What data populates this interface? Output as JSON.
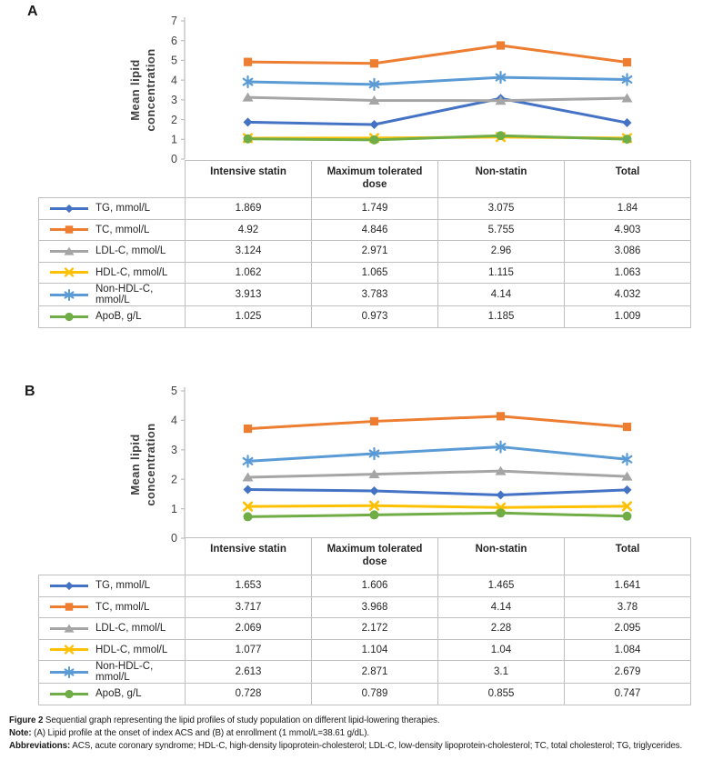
{
  "figure": {
    "panel_a_label": "A",
    "panel_b_label": "B"
  },
  "colors": {
    "tg": "#4472C4",
    "tc": "#ED7D31",
    "ldl": "#A5A5A5",
    "hdl": "#FFC000",
    "non_hdl": "#5B9BD5",
    "apob": "#70AD47",
    "axis_line": "#BFBFBF",
    "table_border": "#BFBFBF",
    "tick_text": "#3F3F3F"
  },
  "chart_data": [
    {
      "type": "line",
      "panel": "A",
      "ylabel": "Mean lipid concentration",
      "ylabel_lines": [
        "Mean lipid",
        "concentration"
      ],
      "categories": [
        "Intensive statin",
        "Maximum tolerated dose",
        "Non-statin",
        "Total"
      ],
      "ylim": [
        0,
        7
      ],
      "yticks": [
        0,
        1,
        2,
        3,
        4,
        5,
        6,
        7
      ],
      "grid": false,
      "legend_position": "table-left",
      "series": [
        {
          "name": "TG, mmol/L",
          "marker": "diamond",
          "color": "#4472C4",
          "values": [
            1.869,
            1.749,
            3.075,
            1.84
          ]
        },
        {
          "name": "TC, mmol/L",
          "marker": "square",
          "color": "#ED7D31",
          "values": [
            4.92,
            4.846,
            5.755,
            4.903
          ]
        },
        {
          "name": "LDL-C, mmol/L",
          "marker": "triangle",
          "color": "#A5A5A5",
          "values": [
            3.124,
            2.971,
            2.96,
            3.086
          ]
        },
        {
          "name": "HDL-C, mmol/L",
          "marker": "x",
          "color": "#FFC000",
          "values": [
            1.062,
            1.065,
            1.115,
            1.063
          ]
        },
        {
          "name": "Non-HDL-C, mmol/L",
          "marker": "asterisk",
          "color": "#5B9BD5",
          "values": [
            3.913,
            3.783,
            4.14,
            4.032
          ]
        },
        {
          "name": "ApoB, g/L",
          "marker": "circle",
          "color": "#70AD47",
          "values": [
            1.025,
            0.973,
            1.185,
            1.009
          ]
        }
      ]
    },
    {
      "type": "line",
      "panel": "B",
      "ylabel": "Mean lipid concentration",
      "ylabel_lines": [
        "Mean lipid",
        "concentration"
      ],
      "categories": [
        "Intensive statin",
        "Maximum tolerated dose",
        "Non-statin",
        "Total"
      ],
      "ylim": [
        0,
        5
      ],
      "yticks": [
        0,
        1,
        2,
        3,
        4,
        5
      ],
      "grid": false,
      "legend_position": "table-left",
      "series": [
        {
          "name": "TG, mmol/L",
          "marker": "diamond",
          "color": "#4472C4",
          "values": [
            1.653,
            1.606,
            1.465,
            1.641
          ]
        },
        {
          "name": "TC, mmol/L",
          "marker": "square",
          "color": "#ED7D31",
          "values": [
            3.717,
            3.968,
            4.14,
            3.78
          ]
        },
        {
          "name": "LDL-C, mmol/L",
          "marker": "triangle",
          "color": "#A5A5A5",
          "values": [
            2.069,
            2.172,
            2.28,
            2.095
          ]
        },
        {
          "name": "HDL-C, mmol/L",
          "marker": "x",
          "color": "#FFC000",
          "values": [
            1.077,
            1.104,
            1.04,
            1.084
          ]
        },
        {
          "name": "Non-HDL-C, mmol/L",
          "marker": "asterisk",
          "color": "#5B9BD5",
          "values": [
            2.613,
            2.871,
            3.1,
            2.679
          ]
        },
        {
          "name": "ApoB, g/L",
          "marker": "circle",
          "color": "#70AD47",
          "values": [
            0.728,
            0.789,
            0.855,
            0.747
          ]
        }
      ]
    }
  ],
  "caption": {
    "lines": [
      {
        "bold": "Figure 2",
        "rest": " Sequential graph representing the lipid profiles of study population on different lipid-lowering therapies."
      },
      {
        "bold": "Note:",
        "rest": " (A) Lipid profile at the onset of index ACS and (B) at enrollment (1 mmol/L=38.61 g/dL)."
      },
      {
        "bold": "Abbreviations:",
        "rest": " ACS, acute coronary syndrome; HDL-C, high-density lipoprotein-cholesterol; LDL-C, low-density lipoprotein-cholesterol; TC, total cholesterol; TG, triglycerides."
      }
    ]
  }
}
